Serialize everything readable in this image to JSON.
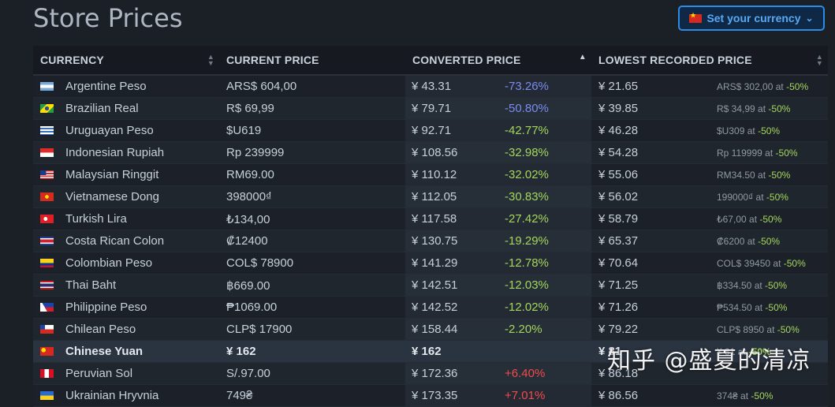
{
  "page": {
    "title": "Store Prices"
  },
  "currency_button": {
    "label": "Set your currency",
    "flag": "cn",
    "icon": "chevron-down-icon"
  },
  "watermark": "知乎 @盛夏的清凉",
  "table": {
    "headers": [
      "CURRENCY",
      "CURRENT PRICE",
      "CONVERTED PRICE",
      "LOWEST RECORDED PRICE"
    ],
    "sorted_column": 2,
    "rows": [
      {
        "flag": "ar",
        "currency": "Argentine Peso",
        "price": "ARS$ 604,00",
        "converted": "¥ 43.31",
        "pct": "-73.26%",
        "pct_class": "pct-neg",
        "lowest": "¥ 21.65",
        "low_price": "ARS$ 302,00",
        "low_at": "at",
        "low_pct": "-50%"
      },
      {
        "flag": "br",
        "currency": "Brazilian Real",
        "price": "R$ 69,99",
        "converted": "¥ 79.71",
        "pct": "-50.80%",
        "pct_class": "pct-neg",
        "lowest": "¥ 39.85",
        "low_price": "R$ 34,99",
        "low_at": "at",
        "low_pct": "-50%"
      },
      {
        "flag": "uy",
        "currency": "Uruguayan Peso",
        "price": "$U619",
        "converted": "¥ 92.71",
        "pct": "-42.77%",
        "pct_class": "pct-down",
        "lowest": "¥ 46.28",
        "low_price": "$U309",
        "low_at": "at",
        "low_pct": "-50%"
      },
      {
        "flag": "id",
        "currency": "Indonesian Rupiah",
        "price": "Rp 239999",
        "converted": "¥ 108.56",
        "pct": "-32.98%",
        "pct_class": "pct-down",
        "lowest": "¥ 54.28",
        "low_price": "Rp 119999",
        "low_at": "at",
        "low_pct": "-50%"
      },
      {
        "flag": "my",
        "currency": "Malaysian Ringgit",
        "price": "RM69.00",
        "converted": "¥ 110.12",
        "pct": "-32.02%",
        "pct_class": "pct-down",
        "lowest": "¥ 55.06",
        "low_price": "RM34.50",
        "low_at": "at",
        "low_pct": "-50%"
      },
      {
        "flag": "vn",
        "currency": "Vietnamese Dong",
        "price": "398000₫",
        "converted": "¥ 112.05",
        "pct": "-30.83%",
        "pct_class": "pct-down",
        "lowest": "¥ 56.02",
        "low_price": "199000₫",
        "low_at": "at",
        "low_pct": "-50%"
      },
      {
        "flag": "tr",
        "currency": "Turkish Lira",
        "price": "₺134,00",
        "converted": "¥ 117.58",
        "pct": "-27.42%",
        "pct_class": "pct-down",
        "lowest": "¥ 58.79",
        "low_price": "₺67,00",
        "low_at": "at",
        "low_pct": "-50%"
      },
      {
        "flag": "cr",
        "currency": "Costa Rican Colon",
        "price": "₡12400",
        "converted": "¥ 130.75",
        "pct": "-19.29%",
        "pct_class": "pct-down",
        "lowest": "¥ 65.37",
        "low_price": "₡6200",
        "low_at": "at",
        "low_pct": "-50%"
      },
      {
        "flag": "co",
        "currency": "Colombian Peso",
        "price": "COL$ 78900",
        "converted": "¥ 141.29",
        "pct": "-12.78%",
        "pct_class": "pct-down",
        "lowest": "¥ 70.64",
        "low_price": "COL$ 39450",
        "low_at": "at",
        "low_pct": "-50%"
      },
      {
        "flag": "th",
        "currency": "Thai Baht",
        "price": "฿669.00",
        "converted": "¥ 142.51",
        "pct": "-12.03%",
        "pct_class": "pct-down",
        "lowest": "¥ 71.25",
        "low_price": "฿334.50",
        "low_at": "at",
        "low_pct": "-50%"
      },
      {
        "flag": "ph",
        "currency": "Philippine Peso",
        "price": "₱1069.00",
        "converted": "¥ 142.52",
        "pct": "-12.02%",
        "pct_class": "pct-down",
        "lowest": "¥ 71.26",
        "low_price": "₱534.50",
        "low_at": "at",
        "low_pct": "-50%"
      },
      {
        "flag": "cl",
        "currency": "Chilean Peso",
        "price": "CLP$ 17900",
        "converted": "¥ 158.44",
        "pct": "-2.20%",
        "pct_class": "pct-down",
        "lowest": "¥ 79.22",
        "low_price": "CLP$ 8950",
        "low_at": "at",
        "low_pct": "-50%"
      },
      {
        "flag": "cn",
        "currency": "Chinese Yuan",
        "price": "¥ 162",
        "converted": "¥ 162",
        "pct": "",
        "pct_class": "",
        "lowest": "¥ 81",
        "low_price": "¥ 81",
        "low_at": "at",
        "low_pct": "-50%",
        "highlight": true
      },
      {
        "flag": "pe",
        "currency": "Peruvian Sol",
        "price": "S/.97.00",
        "converted": "¥ 172.36",
        "pct": "+6.40%",
        "pct_class": "pct-up",
        "lowest": "¥ 86.18",
        "low_price": "",
        "low_at": "",
        "low_pct": ""
      },
      {
        "flag": "ua",
        "currency": "Ukrainian Hryvnia",
        "price": "749₴",
        "converted": "¥ 173.35",
        "pct": "+7.01%",
        "pct_class": "pct-up",
        "lowest": "¥ 86.56",
        "low_price": "374₴",
        "low_at": "at",
        "low_pct": "-50%"
      }
    ]
  },
  "colors": {
    "accent": "#2d8be6",
    "positive": "#a4d65e",
    "negative": "#f24b4b",
    "neg_blue": "#7a8cf0"
  }
}
